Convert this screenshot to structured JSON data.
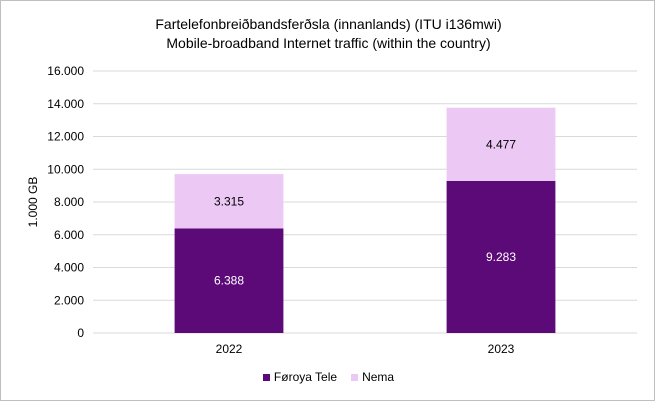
{
  "chart_data": {
    "type": "bar",
    "stacked": true,
    "title_lines": [
      "Fartelefonbreiðbandsferðsla (innanlands) (ITU i136mwi)",
      "Mobile-broadband Internet traffic (within the country)"
    ],
    "ylabel": "1.000 GB",
    "xlabel": "",
    "categories": [
      "2022",
      "2023"
    ],
    "series": [
      {
        "name": "Føroya Tele",
        "values": [
          6388,
          9283
        ],
        "labels": [
          "6.388",
          "9.283"
        ],
        "color": "#5b0a78",
        "label_color": "#ffffff"
      },
      {
        "name": "Nema",
        "values": [
          3315,
          4477
        ],
        "labels": [
          "3.315",
          "4.477"
        ],
        "color": "#ecc8f5",
        "label_color": "#000000"
      }
    ],
    "ylim": [
      0,
      16000
    ],
    "yticks": [
      0,
      2000,
      4000,
      6000,
      8000,
      10000,
      12000,
      14000,
      16000
    ],
    "ytick_labels": [
      "0",
      "2.000",
      "4.000",
      "6.000",
      "8.000",
      "10.000",
      "12.000",
      "14.000",
      "16.000"
    ],
    "grid": true,
    "legend_position": "bottom"
  }
}
